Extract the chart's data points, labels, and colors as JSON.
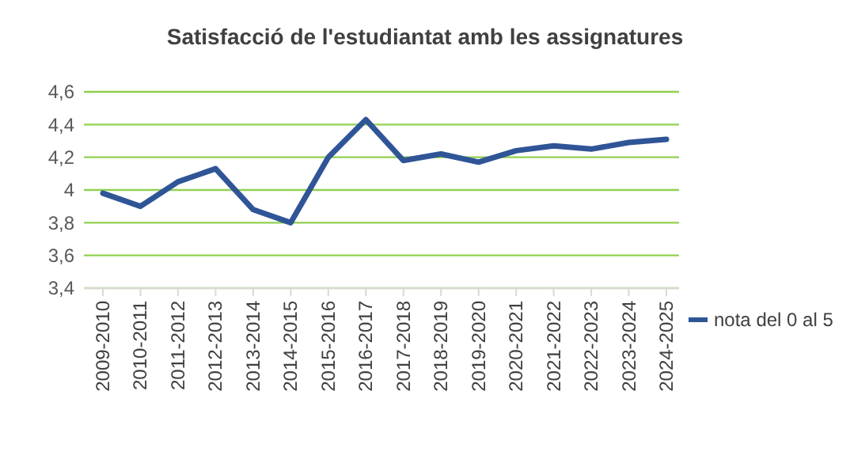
{
  "chart_data": {
    "type": "line",
    "title": "Satisfacció de l'estudiantat amb les assignatures",
    "categories": [
      "2009-2010",
      "2010-2011",
      "2011-2012",
      "2012-2013",
      "2013-2014",
      "2014-2015",
      "2015-2016",
      "2016-2017",
      "2017-2018",
      "2018-2019",
      "2019-2020",
      "2020-2021",
      "2021-2022",
      "2022-2023",
      "2023-2024",
      "2024-2025"
    ],
    "series": [
      {
        "name": "nota del 0 al 5",
        "color": "#2f5597",
        "values": [
          3.98,
          3.9,
          4.05,
          4.13,
          3.88,
          3.8,
          4.2,
          4.43,
          4.18,
          4.22,
          4.17,
          4.24,
          4.27,
          4.25,
          4.29,
          4.31
        ]
      }
    ],
    "ylim": [
      3.4,
      4.6
    ],
    "yticks": [
      {
        "value": 3.4,
        "label": "3,4"
      },
      {
        "value": 3.6,
        "label": "3,6"
      },
      {
        "value": 3.8,
        "label": "3,8"
      },
      4,
      {
        "value": 4.2,
        "label": "4,2"
      },
      {
        "value": 4.4,
        "label": "4,4"
      },
      {
        "value": 4.6,
        "label": "4,6"
      }
    ],
    "grid": "y",
    "legend": "right",
    "marker": "none",
    "line_style": "solid"
  }
}
